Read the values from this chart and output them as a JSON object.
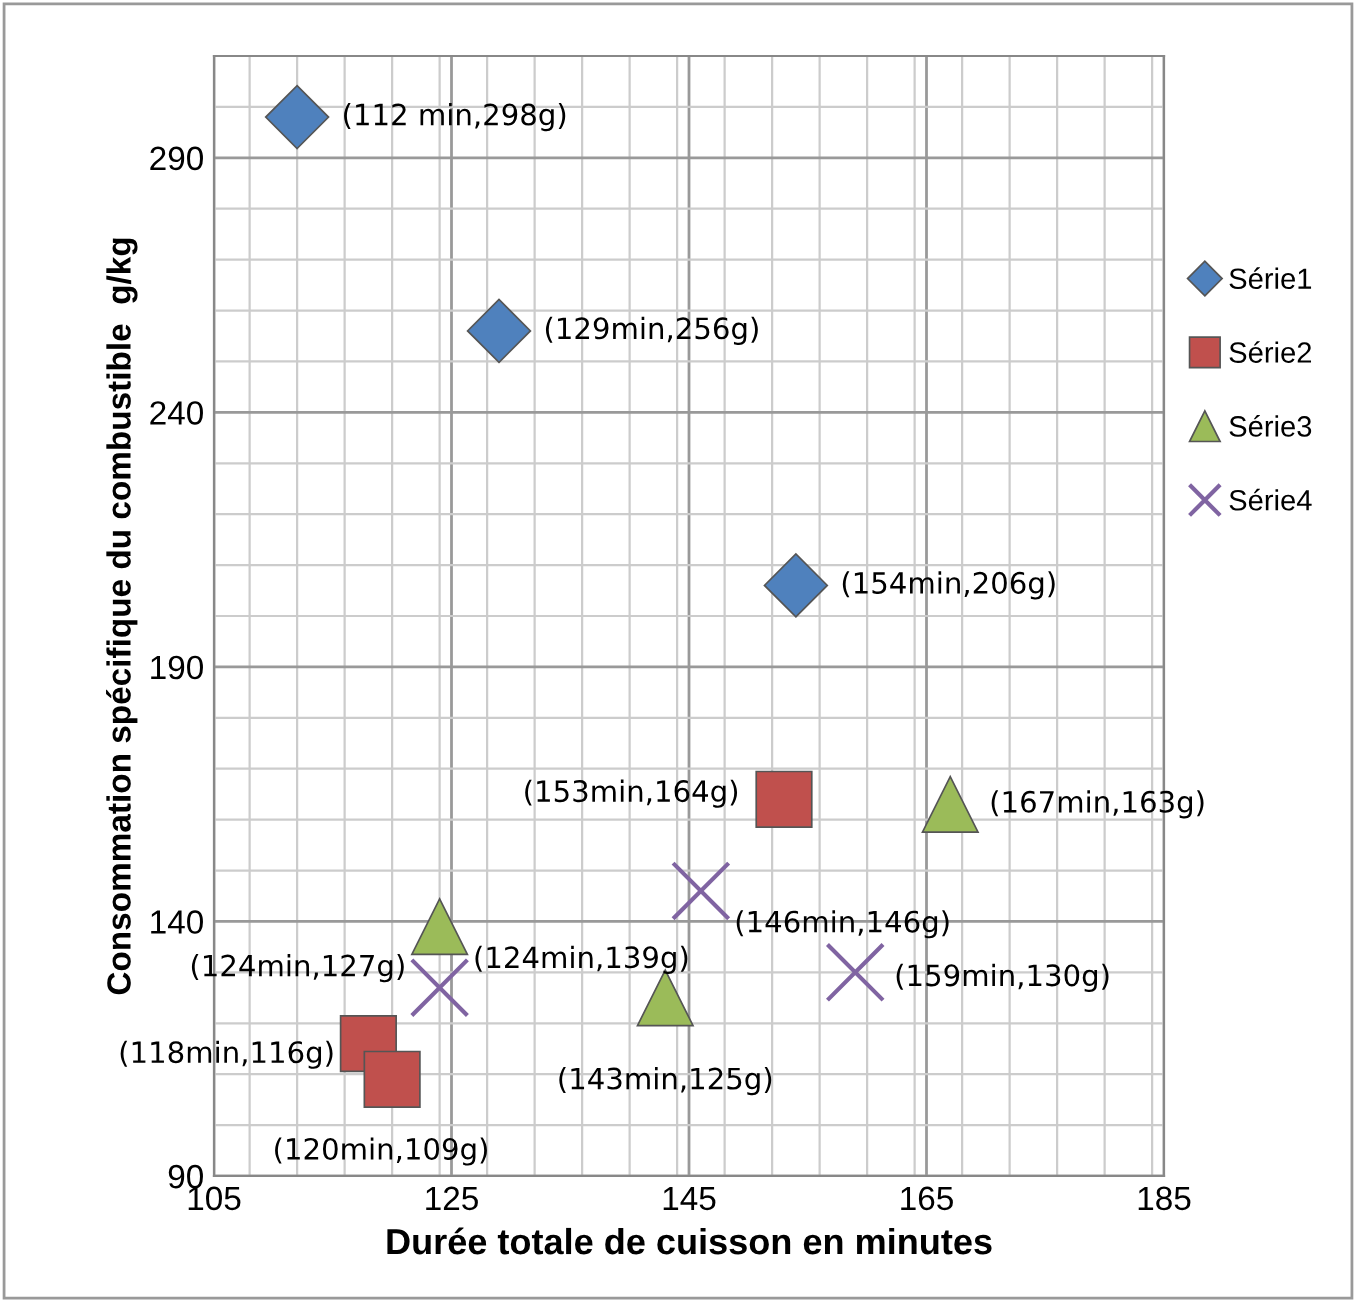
{
  "chart_data": {
    "type": "scatter",
    "xlabel": "Durée totale de cuisson en minutes",
    "ylabel": "Consommation spécifique du combustible  g/kg",
    "series": [
      {
        "name": "Série1",
        "color": "#4f81bd",
        "marker": "diamond",
        "x": [
          112,
          129,
          154
        ],
        "values": [
          298,
          256,
          206
        ]
      },
      {
        "name": "Série2",
        "color": "#c0504d",
        "marker": "square",
        "x": [
          118,
          120,
          153
        ],
        "values": [
          116,
          109,
          164
        ]
      },
      {
        "name": "Série3",
        "color": "#9bbb59",
        "marker": "triangle",
        "x": [
          124,
          143,
          167
        ],
        "values": [
          139,
          125,
          163
        ]
      },
      {
        "name": "Série4",
        "color": "#8064a2",
        "marker": "cross",
        "x": [
          124,
          146,
          159
        ],
        "values": [
          127,
          146,
          130
        ]
      }
    ],
    "annotations": [
      {
        "text": "(112 min,298g)",
        "x": 112,
        "y": 298
      },
      {
        "text": "(129min,256g)",
        "x": 129,
        "y": 256
      },
      {
        "text": "(154min,206g)",
        "x": 154,
        "y": 206
      },
      {
        "text": "(118min,116g)",
        "x": 118,
        "y": 116
      },
      {
        "text": "(120min,109g)",
        "x": 120,
        "y": 109
      },
      {
        "text": "(153min,164g)",
        "x": 153,
        "y": 164
      },
      {
        "text": "(124min,139g)",
        "x": 124,
        "y": 139
      },
      {
        "text": "(143min,125g)",
        "x": 143,
        "y": 125
      },
      {
        "text": "(167min,163g)",
        "x": 167,
        "y": 163
      },
      {
        "text": "(124min,127g)",
        "x": 124,
        "y": 127
      },
      {
        "text": "(146min,146g)",
        "x": 146,
        "y": 146
      },
      {
        "text": "(159min,130g)",
        "x": 159,
        "y": 130
      }
    ],
    "xlim": [
      105,
      185
    ],
    "xticks": [
      105,
      125,
      145,
      165,
      185
    ],
    "ylim": [
      90,
      310
    ],
    "yticks": [
      90,
      140,
      190,
      240,
      290
    ],
    "grid": true,
    "legend": "right"
  }
}
